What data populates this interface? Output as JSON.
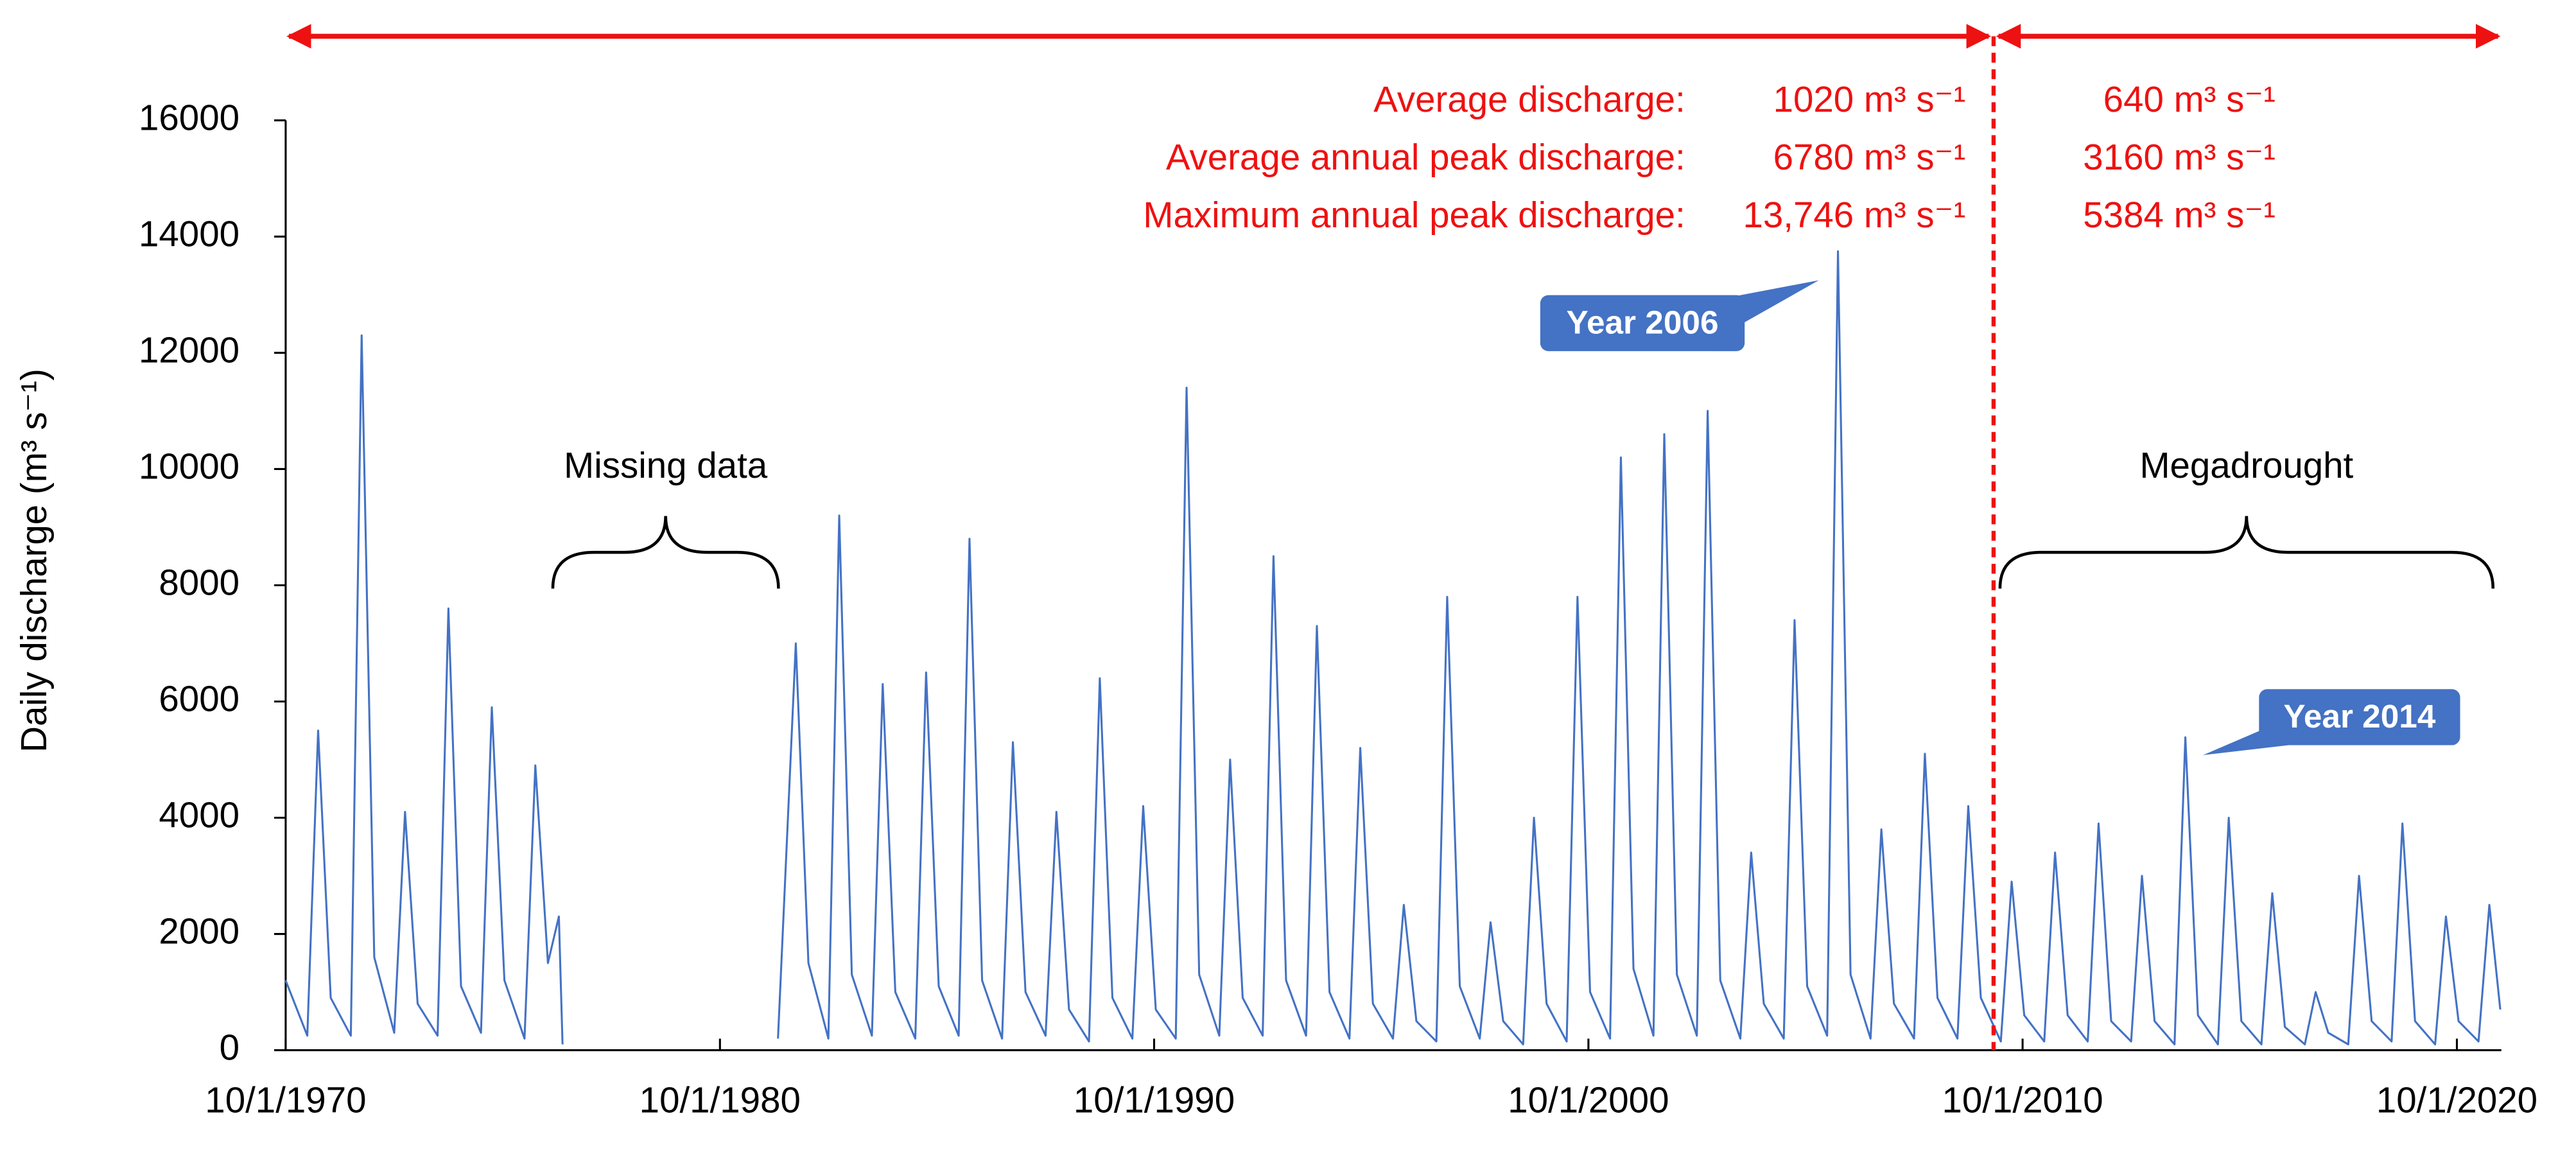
{
  "chart_data": {
    "type": "line",
    "ylabel": "Daily discharge (m³ s⁻¹)",
    "color": "#4472c4",
    "xlim": [
      "1970-10-01",
      "2021-10-10"
    ],
    "ylim": [
      0,
      16000
    ],
    "yticks": [
      0,
      2000,
      4000,
      6000,
      8000,
      10000,
      12000,
      14000,
      16000
    ],
    "xticks": [
      {
        "value": "1970-10-01",
        "label": "10/1/1970"
      },
      {
        "value": "1980-10-01",
        "label": "10/1/1980"
      },
      {
        "value": "1990-10-01",
        "label": "10/1/1990"
      },
      {
        "value": "2000-10-01",
        "label": "10/1/2000"
      },
      {
        "value": "2010-10-01",
        "label": "10/1/2010"
      },
      {
        "value": "2020-10-01",
        "label": "10/1/2020"
      }
    ],
    "grid": false,
    "x": [
      "1970-10-01",
      "1971-04-01",
      "1971-07-01",
      "1971-10-15",
      "1972-04-01",
      "1972-07-01",
      "1972-10-15",
      "1973-04-01",
      "1973-07-01",
      "1973-10-15",
      "1974-04-01",
      "1974-07-01",
      "1974-10-15",
      "1975-04-01",
      "1975-07-01",
      "1975-10-15",
      "1976-04-01",
      "1976-07-01",
      "1976-10-15",
      "1977-01-15",
      "1977-02-15",
      "1979-06-01",
      "1982-02-01",
      "1982-07-01",
      "1982-10-15",
      "1983-04-01",
      "1983-07-01",
      "1983-10-15",
      "1984-04-01",
      "1984-07-01",
      "1984-10-15",
      "1985-04-01",
      "1985-07-01",
      "1985-10-15",
      "1986-04-01",
      "1986-07-01",
      "1986-10-15",
      "1987-04-01",
      "1987-07-01",
      "1987-10-15",
      "1988-04-01",
      "1988-07-01",
      "1988-10-15",
      "1989-04-01",
      "1989-07-01",
      "1989-10-15",
      "1990-04-01",
      "1990-07-01",
      "1990-10-15",
      "1991-04-01",
      "1991-07-01",
      "1991-10-15",
      "1992-04-01",
      "1992-07-01",
      "1992-10-15",
      "1993-04-01",
      "1993-07-01",
      "1993-10-15",
      "1994-04-01",
      "1994-07-01",
      "1994-10-15",
      "1995-04-01",
      "1995-07-01",
      "1995-10-15",
      "1996-04-01",
      "1996-07-01",
      "1996-10-15",
      "1997-04-01",
      "1997-07-01",
      "1997-10-15",
      "1998-04-01",
      "1998-07-01",
      "1998-10-15",
      "1999-04-01",
      "1999-07-01",
      "1999-10-15",
      "2000-04-01",
      "2000-07-01",
      "2000-10-15",
      "2001-04-01",
      "2001-07-01",
      "2001-10-15",
      "2002-04-01",
      "2002-07-01",
      "2002-10-15",
      "2003-04-01",
      "2003-07-01",
      "2003-10-15",
      "2004-04-01",
      "2004-07-01",
      "2004-10-15",
      "2005-04-01",
      "2005-07-01",
      "2005-10-15",
      "2006-04-01",
      "2006-07-01",
      "2006-10-15",
      "2007-04-01",
      "2007-07-01",
      "2007-10-15",
      "2008-04-01",
      "2008-07-01",
      "2008-10-15",
      "2009-04-01",
      "2009-07-01",
      "2009-10-15",
      "2010-04-01",
      "2010-07-01",
      "2010-10-15",
      "2011-04-01",
      "2011-07-01",
      "2011-10-15",
      "2012-04-01",
      "2012-07-01",
      "2012-10-15",
      "2013-04-01",
      "2013-07-01",
      "2013-10-15",
      "2014-04-01",
      "2014-07-01",
      "2014-10-15",
      "2015-04-01",
      "2015-07-01",
      "2015-10-15",
      "2016-04-01",
      "2016-07-01",
      "2016-10-15",
      "2017-04-01",
      "2017-07-01",
      "2017-10-15",
      "2018-04-01",
      "2018-07-01",
      "2018-10-15",
      "2019-04-01",
      "2019-07-01",
      "2019-10-15",
      "2020-04-01",
      "2020-07-01",
      "2020-10-15",
      "2021-04-01",
      "2021-07-01",
      "2021-10-01"
    ],
    "values": [
      1200,
      250,
      5500,
      900,
      250,
      12300,
      1600,
      300,
      4100,
      800,
      250,
      7600,
      1100,
      300,
      5900,
      1200,
      200,
      4900,
      1500,
      2300,
      100,
      null,
      200,
      7000,
      1500,
      200,
      9200,
      1300,
      250,
      6300,
      1000,
      200,
      6500,
      1100,
      250,
      8800,
      1200,
      200,
      5300,
      1000,
      250,
      4100,
      700,
      150,
      6400,
      900,
      200,
      4200,
      700,
      200,
      11400,
      1300,
      250,
      5000,
      900,
      250,
      8500,
      1200,
      250,
      7300,
      1000,
      200,
      5200,
      800,
      200,
      2500,
      500,
      150,
      7800,
      1100,
      200,
      2200,
      500,
      100,
      4000,
      800,
      150,
      7800,
      1000,
      200,
      10200,
      1400,
      250,
      10600,
      1300,
      250,
      11000,
      1200,
      200,
      3400,
      800,
      200,
      7400,
      1100,
      250,
      13746,
      1300,
      200,
      3800,
      800,
      200,
      5100,
      900,
      200,
      4200,
      900,
      150,
      2900,
      600,
      150,
      3400,
      600,
      150,
      3900,
      500,
      150,
      3000,
      500,
      100,
      5384,
      600,
      100,
      4000,
      500,
      100,
      2700,
      400,
      100,
      1000,
      300,
      100,
      3000,
      500,
      150,
      3900,
      500,
      100,
      2300,
      500,
      150,
      2500,
      700
    ],
    "divider": "2010-01-30",
    "stats": [
      {
        "label": "Average discharge:",
        "before": "1020 m³ s⁻¹",
        "after": "640 m³ s⁻¹"
      },
      {
        "label": "Average annual peak discharge:",
        "before": "6780 m³ s⁻¹",
        "after": "3160 m³ s⁻¹"
      },
      {
        "label": "Maximum annual peak discharge:",
        "before": "13,746 m³ s⁻¹",
        "after": "5384 m³ s⁻¹"
      }
    ],
    "braces": [
      {
        "label": "Missing data",
        "from": "1976-11-25",
        "to": "1982-02-05"
      },
      {
        "label": "Megadrought",
        "from": "2010-03-25",
        "to": "2021-08-01"
      }
    ],
    "callouts": [
      "Year 2006",
      "Year 2014"
    ]
  }
}
